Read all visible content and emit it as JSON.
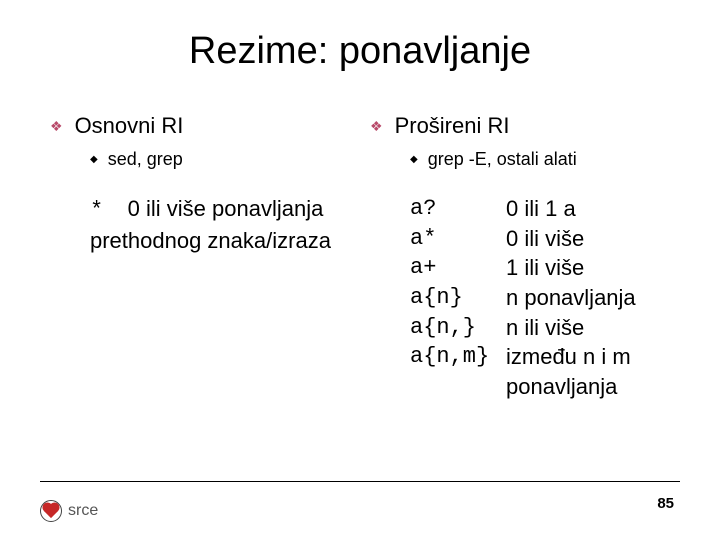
{
  "title": "Rezime: ponavljanje",
  "left": {
    "heading": "Osnovni RI",
    "sub": "sed, grep",
    "body_code": "*",
    "body_text": "0 ili više ponavljanja prethodnog znaka/izraza"
  },
  "right": {
    "heading": "Prošireni RI",
    "sub": "grep -E, ostali alati",
    "patterns": [
      {
        "code": "a?",
        "desc": "0 ili 1 a"
      },
      {
        "code": "a*",
        "desc": "0 ili više"
      },
      {
        "code": "a+",
        "desc": "1 ili više"
      },
      {
        "code": "a{n}",
        "desc": "n ponavljanja"
      },
      {
        "code": "a{n,}",
        "desc": "n ili više"
      },
      {
        "code": "a{n,m}",
        "desc": "između n i m"
      }
    ],
    "cont": "ponavljanja"
  },
  "footer": {
    "logo_text": "srce",
    "page": "85"
  },
  "colors": {
    "diamond": "#b94a6a",
    "text": "#000000",
    "line": "#000000",
    "heart": "#c62828",
    "logo_text": "#555555",
    "bg": "#ffffff"
  },
  "fonts": {
    "title_size": 38,
    "bullet_size": 22,
    "sub_size": 18,
    "body_size": 22
  }
}
